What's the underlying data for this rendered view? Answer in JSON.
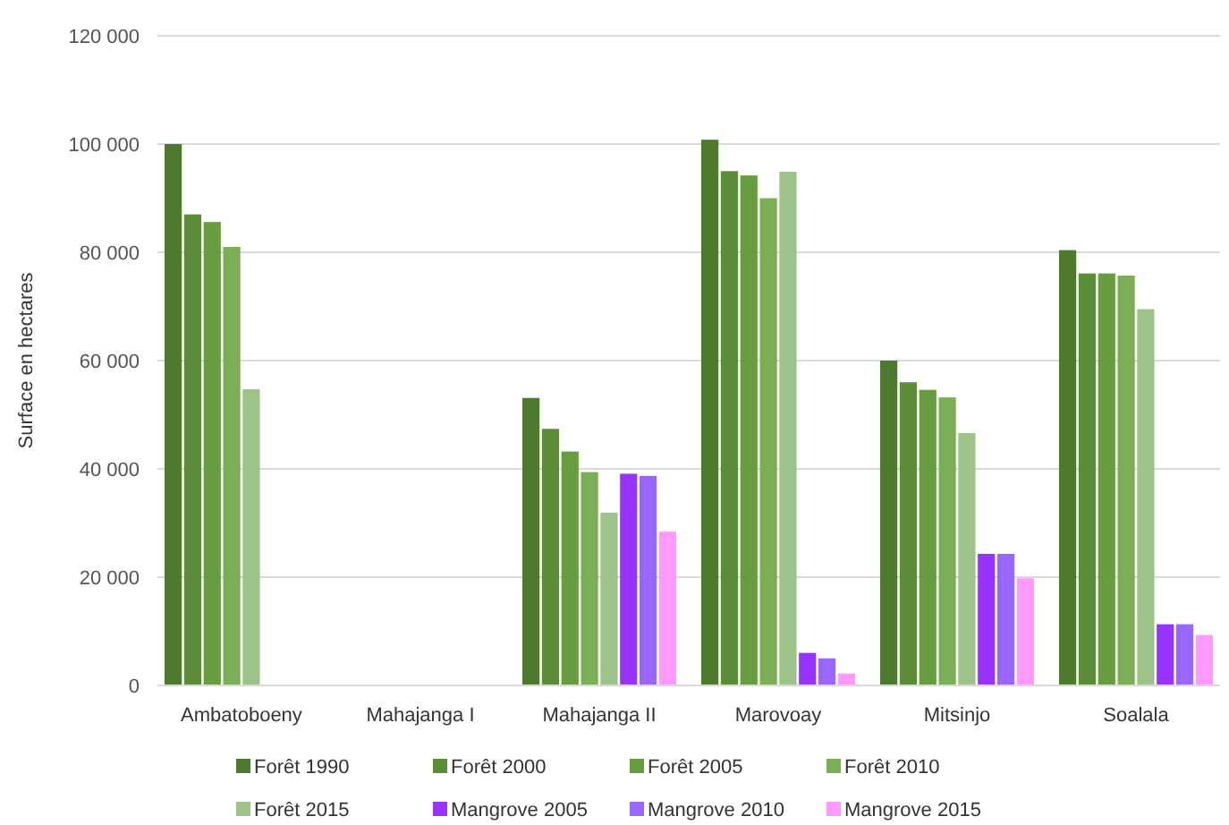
{
  "chart_data": {
    "type": "bar",
    "ylabel": "Surface en hectares",
    "categories": [
      "Ambatoboeny",
      "Mahajanga I",
      "Mahajanga II",
      "Marovoay",
      "Mitsinjo",
      "Soalala"
    ],
    "series": [
      {
        "name": "Forêt 1990",
        "color": "#4e7a2e",
        "values": [
          100000,
          null,
          53100,
          100800,
          60000,
          80400
        ]
      },
      {
        "name": "Forêt 2000",
        "color": "#5b8c37",
        "values": [
          87000,
          null,
          47400,
          95000,
          56000,
          76100
        ]
      },
      {
        "name": "Forêt 2005",
        "color": "#679d3f",
        "values": [
          85600,
          null,
          43200,
          94200,
          54600,
          76100
        ]
      },
      {
        "name": "Forêt 2010",
        "color": "#7aaf55",
        "values": [
          81000,
          null,
          39400,
          90000,
          53200,
          75700
        ]
      },
      {
        "name": "Forêt 2015",
        "color": "#9ec389",
        "values": [
          54700,
          null,
          31900,
          94900,
          46600,
          69500
        ]
      },
      {
        "name": "Mangrove 2005",
        "color": "#9933ff",
        "values": [
          null,
          null,
          39100,
          6000,
          24300,
          11300
        ]
      },
      {
        "name": "Mangrove 2010",
        "color": "#9966ff",
        "values": [
          null,
          null,
          38700,
          5000,
          24300,
          11300
        ]
      },
      {
        "name": "Mangrove 2015",
        "color": "#ff99ff",
        "values": [
          null,
          null,
          28400,
          2200,
          19800,
          9300
        ]
      }
    ],
    "ylim": [
      0,
      120000
    ],
    "yticks": [
      {
        "value": 0,
        "label": "0"
      },
      {
        "value": 20000,
        "label": "20 000"
      },
      {
        "value": 40000,
        "label": "40 000"
      },
      {
        "value": 60000,
        "label": "60 000"
      },
      {
        "value": 80000,
        "label": "80 000"
      },
      {
        "value": 100000,
        "label": "100 000"
      },
      {
        "value": 120000,
        "label": "120 000"
      }
    ],
    "grid": "y",
    "legend": "bottom"
  }
}
